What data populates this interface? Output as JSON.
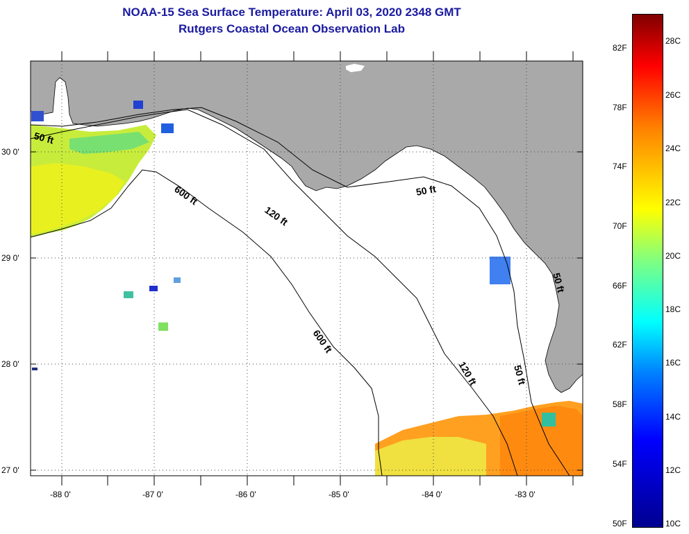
{
  "header": {
    "title_line1": "NOAA-15 Sea Surface Temperature:  April 03, 2020 2348 GMT",
    "title_line2": "Rutgers Coastal Ocean Observation Lab"
  },
  "map": {
    "lon_labels": [
      "-88 0'",
      "-87 0'",
      "-86 0'",
      "-85 0'",
      "-84 0'",
      "-83 0'"
    ],
    "lat_labels": [
      "30 0'",
      "29 0'",
      "28 0'",
      "27 0'"
    ],
    "contour_labels": [
      "50 ft",
      "600 ft",
      "120 ft",
      "50 ft",
      "600 ft",
      "120 ft",
      "50 ft",
      "50 ft"
    ],
    "colors": {
      "land": "#a9a9a9",
      "water": "#ffffff",
      "contour": "#000000"
    }
  },
  "colorbar": {
    "fahrenheit_labels": [
      "82F",
      "78F",
      "74F",
      "70F",
      "66F",
      "62F",
      "58F",
      "54F",
      "50F"
    ],
    "celsius_labels": [
      "28C",
      "26C",
      "24C",
      "22C",
      "20C",
      "18C",
      "16C",
      "14C",
      "12C",
      "10C"
    ],
    "gradient_stops": [
      "#00008f",
      "#0000ff",
      "#0080ff",
      "#00ffff",
      "#80ff80",
      "#ffff00",
      "#ff8000",
      "#ff0000",
      "#800000"
    ]
  }
}
